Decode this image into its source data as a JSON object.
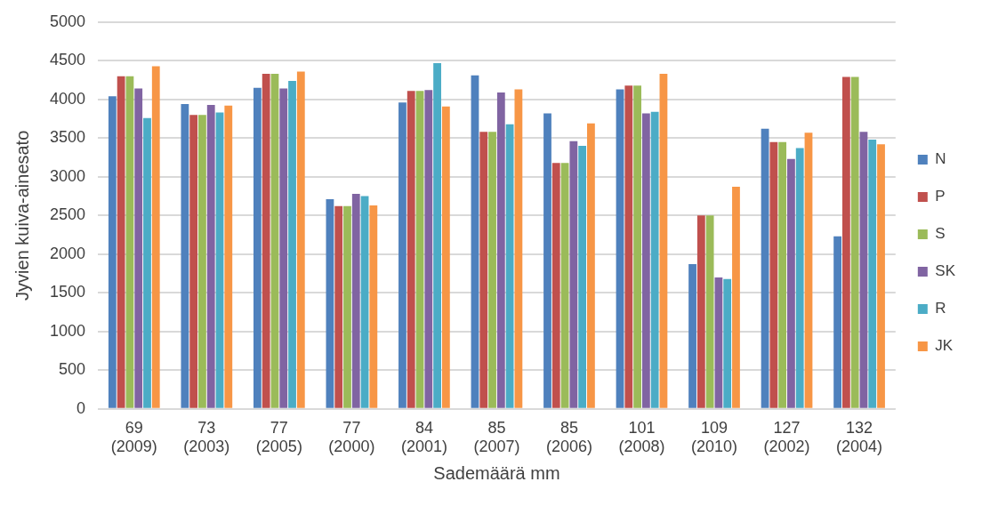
{
  "chart_data": {
    "type": "bar",
    "xlabel": "Sademäärä mm",
    "ylabel": "Jyvien kuiva-ainesato",
    "categories": [
      "69\n(2009)",
      "73\n(2003)",
      "77\n(2005)",
      "77\n(2000)",
      "84\n(2001)",
      "85\n(2007)",
      "85\n(2006)",
      "101\n(2008)",
      "109\n(2010)",
      "127\n(2002)",
      "132\n(2004)"
    ],
    "series": [
      {
        "name": "N",
        "color": "#4f81bd",
        "values": [
          4040,
          3940,
          4150,
          2710,
          3960,
          4310,
          3820,
          4130,
          1870,
          3620,
          2230
        ]
      },
      {
        "name": "P",
        "color": "#c0504d",
        "values": [
          4300,
          3800,
          4330,
          2620,
          4110,
          3580,
          3180,
          4180,
          2500,
          3450,
          4290
        ]
      },
      {
        "name": "S",
        "color": "#9bbb59",
        "values": [
          4300,
          3800,
          4330,
          2620,
          4110,
          3580,
          3180,
          4180,
          2500,
          3450,
          4290
        ]
      },
      {
        "name": "SK",
        "color": "#8064a2",
        "values": [
          4140,
          3930,
          4140,
          2780,
          4120,
          4090,
          3460,
          3820,
          1700,
          3230,
          3580
        ]
      },
      {
        "name": "R",
        "color": "#4bacc6",
        "values": [
          3760,
          3830,
          4240,
          2750,
          4470,
          3680,
          3400,
          3840,
          1680,
          3370,
          3480
        ]
      },
      {
        "name": "JK",
        "color": "#f79646",
        "values": [
          4430,
          3920,
          4360,
          2630,
          3910,
          4130,
          3690,
          4330,
          2870,
          3570,
          3420
        ]
      }
    ],
    "ylim": [
      0,
      5000
    ],
    "yticks": [
      0,
      500,
      1000,
      1500,
      2000,
      2500,
      3000,
      3500,
      4000,
      4500,
      5000
    ],
    "grid": "y",
    "legend": "right"
  }
}
